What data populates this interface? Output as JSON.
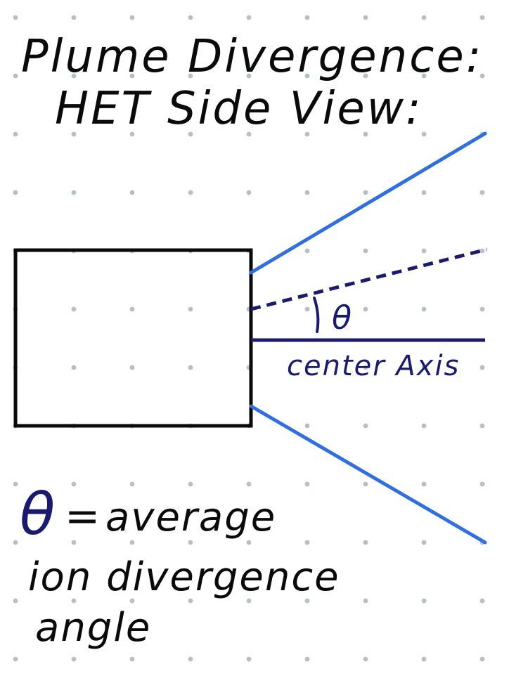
{
  "title": {
    "line1": "Plume Divergence:",
    "line2": "HET Side View:"
  },
  "diagram": {
    "theta_symbol": "θ",
    "axis_label": "center Axis"
  },
  "legend": {
    "symbol": "θ",
    "equals": "=",
    "line1": "average",
    "line2": "ion divergence",
    "line3": "angle"
  },
  "colors": {
    "ink": "#0a0a0a",
    "navy": "#1a1a6e",
    "plume_blue": "#2f6fe0",
    "grid_dot": "#b8bec9"
  }
}
